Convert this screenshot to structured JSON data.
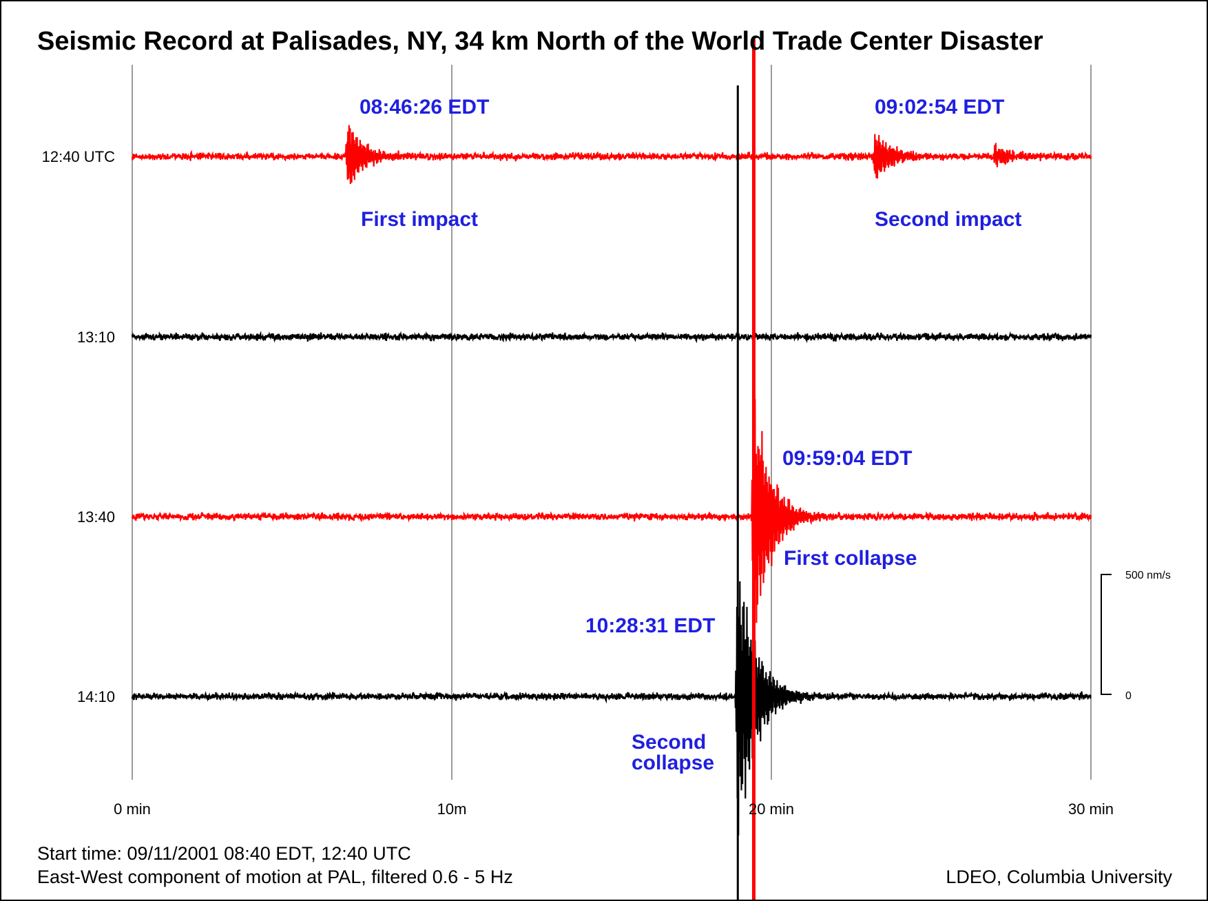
{
  "chart_data": {
    "type": "line",
    "title": "Seismic Record at Palisades, NY, 34 km North of the World Trade Center Disaster",
    "x_unit": "min",
    "xlim": [
      0,
      30
    ],
    "x_ticks": [
      {
        "value": 0,
        "label": "0 min"
      },
      {
        "value": 10,
        "label": "10m"
      },
      {
        "value": 20,
        "label": "20 min"
      },
      {
        "value": 30,
        "label": "30 min"
      }
    ],
    "grid": true,
    "series": [
      {
        "name": "12:40 UTC",
        "color": "#ff0000",
        "noise_nm_s": 45,
        "events": [
          {
            "t": 6.75,
            "amplitude_nm_s": 170
          },
          {
            "t": 23.25,
            "amplitude_nm_s": 130
          },
          {
            "t": 27.0,
            "amplitude_nm_s": 60
          }
        ]
      },
      {
        "name": "13:10",
        "color": "#000000",
        "noise_nm_s": 45,
        "events": []
      },
      {
        "name": "13:40",
        "color": "#ff0000",
        "noise_nm_s": 45,
        "events": [
          {
            "t": 19.45,
            "amplitude_nm_s": 600
          }
        ]
      },
      {
        "name": "14:10",
        "color": "#000000",
        "noise_nm_s": 45,
        "events": [
          {
            "t": 18.95,
            "amplitude_nm_s": 700
          }
        ]
      }
    ],
    "annotations": [
      {
        "time": "08:46:26 EDT",
        "label": "First impact",
        "series": 0,
        "t": 6.75
      },
      {
        "time": "09:02:54 EDT",
        "label": "Second impact",
        "series": 0,
        "t": 23.25
      },
      {
        "time": "09:59:04 EDT",
        "label": "First collapse",
        "series": 2,
        "t": 19.45
      },
      {
        "time": "10:28:31 EDT",
        "label_lines": [
          "Second",
          "collapse"
        ],
        "series": 3,
        "t": 18.95
      }
    ],
    "scale_bar": {
      "top_label": "500 nm/s",
      "bottom_label": "0",
      "value_nm_s": 500
    }
  },
  "footer": {
    "line1": "Start time: 09/11/2001 08:40 EDT, 12:40 UTC",
    "line2": "East-West component of motion at PAL, filtered 0.6 - 5 Hz",
    "credit": "LDEO, Columbia University"
  }
}
